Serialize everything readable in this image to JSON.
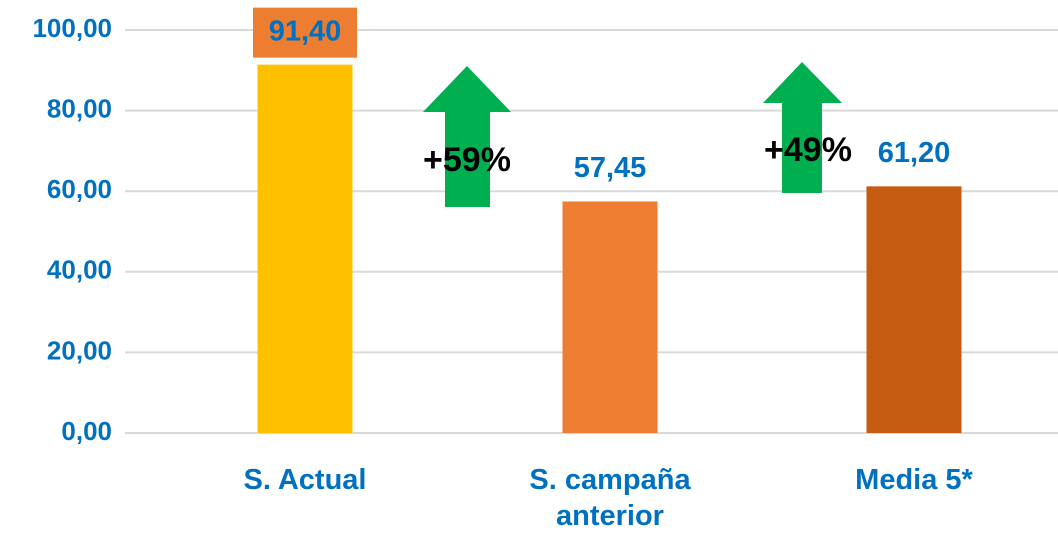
{
  "chart_data": {
    "type": "bar",
    "categories": [
      "S. Actual",
      "S. campaña anterior",
      "Media 5*"
    ],
    "values": [
      91.4,
      57.45,
      61.2
    ],
    "value_labels": [
      "91,40",
      "57,45",
      "61,20"
    ],
    "colors": [
      "#FFC000",
      "#ED7D31",
      "#C55A11"
    ],
    "ylim": [
      0,
      100
    ],
    "yticks": [
      {
        "value": 0,
        "label": "0,00"
      },
      {
        "value": 20,
        "label": "20,00"
      },
      {
        "value": 40,
        "label": "40,00"
      },
      {
        "value": 60,
        "label": "60,00"
      },
      {
        "value": 80,
        "label": "80,00"
      },
      {
        "value": 100,
        "label": "100,00"
      }
    ],
    "grid": true,
    "annotations": [
      {
        "text": "+59%"
      },
      {
        "text": "+49%"
      }
    ]
  }
}
